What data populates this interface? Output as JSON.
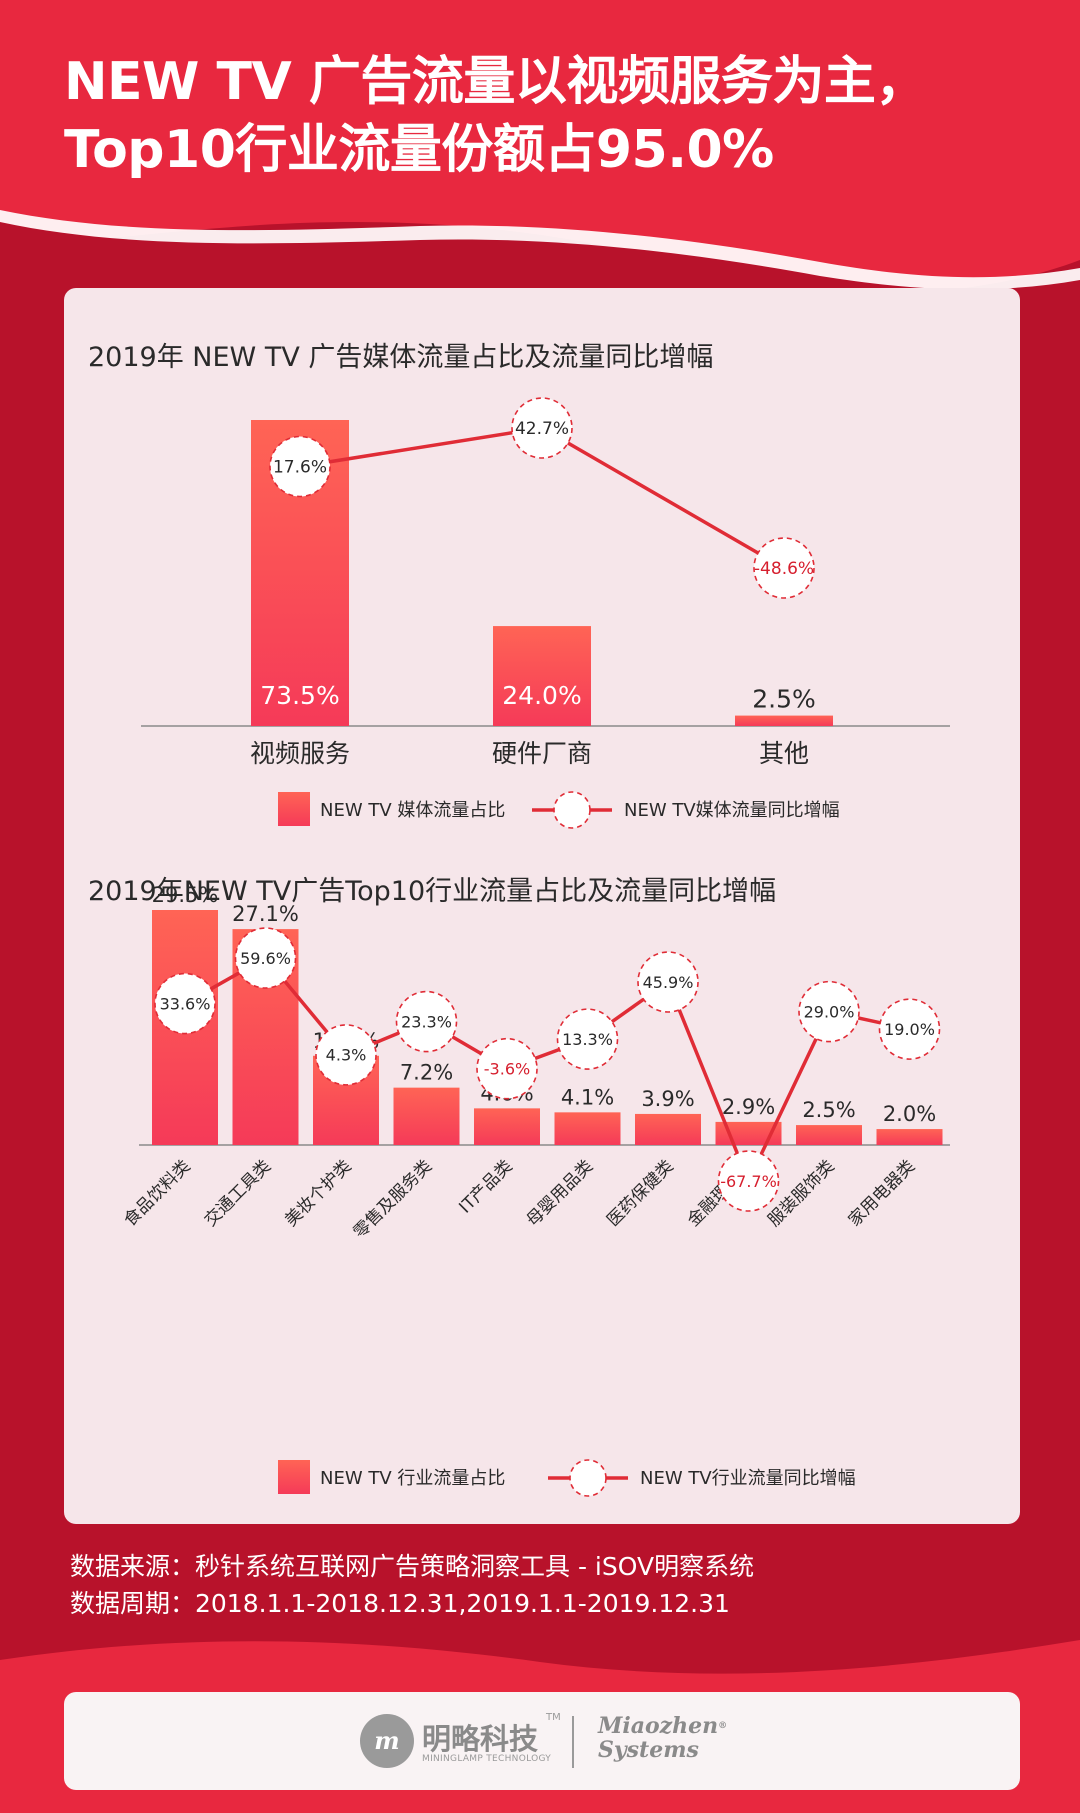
{
  "header": {
    "title_line1": "NEW TV 广告流量以视频服务为主，",
    "title_line2": "Top10行业流量份额占95.0%"
  },
  "colors": {
    "background": "#b8122b",
    "header": "#e8283f",
    "panel": "#f6e6ea",
    "bar_top": "#ff6455",
    "bar_bottom": "#f53a58",
    "line": "#e02c36",
    "negative_text": "#d61f2e",
    "text_dark": "#2a2a2a"
  },
  "chart_data": [
    {
      "type": "bar",
      "title": "2019年 NEW TV 广告媒体流量占比及流量同比增幅",
      "categories": [
        "视频服务",
        "硬件厂商",
        "其他"
      ],
      "series": [
        {
          "name": "NEW TV 媒体流量占比",
          "type": "bar",
          "values": [
            73.5,
            24.0,
            2.5
          ],
          "labels": [
            "73.5%",
            "24.0%",
            "2.5%"
          ]
        },
        {
          "name": "NEW TV媒体流量同比增幅",
          "type": "line",
          "values": [
            17.6,
            42.7,
            -48.6
          ],
          "labels": [
            "17.6%",
            "42.7%",
            "-48.6%"
          ]
        }
      ],
      "legend_position": "bottom-center",
      "grid": false
    },
    {
      "type": "bar",
      "title": "2019年NEW TV广告Top10行业流量占比及流量同比增幅",
      "categories": [
        "食品饮料类",
        "交通工具类",
        "美妆个护类",
        "零售及服务类",
        "IT产品类",
        "母婴用品类",
        "医药保健类",
        "金融理财类",
        "服装服饰类",
        "家用电器类"
      ],
      "series": [
        {
          "name": "NEW TV 行业流量占比",
          "type": "bar",
          "values": [
            29.5,
            27.1,
            11.2,
            7.2,
            4.6,
            4.1,
            3.9,
            2.9,
            2.5,
            2.0
          ],
          "labels": [
            "29.5%",
            "27.1%",
            "11.2%",
            "7.2%",
            "4.6%",
            "4.1%",
            "3.9%",
            "2.9%",
            "2.5%",
            "2.0%"
          ]
        },
        {
          "name": "NEW TV行业流量同比增幅",
          "type": "line",
          "values": [
            33.6,
            59.6,
            4.3,
            23.3,
            -3.6,
            13.3,
            45.9,
            -67.7,
            29.0,
            19.0
          ],
          "labels": [
            "33.6%",
            "59.6%",
            "4.3%",
            "23.3%",
            "-3.6%",
            "13.3%",
            "45.9%",
            "-67.7%",
            "29.0%",
            "19.0%"
          ]
        }
      ],
      "legend_position": "bottom-center",
      "grid": false
    }
  ],
  "footer": {
    "source": "数据来源：秒针系统互联网广告策略洞察工具 - iSOV明察系统",
    "period": "数据周期：2018.1.1-2018.12.31,2019.1.1-2019.12.31"
  },
  "logo": {
    "mark": "m",
    "name": "明略科技",
    "tm": "TM",
    "subtitle": "MININGLAMP TECHNOLOGY",
    "partner_line1": "Miaozhen",
    "partner_line2": "Systems",
    "partner_reg": "®"
  }
}
